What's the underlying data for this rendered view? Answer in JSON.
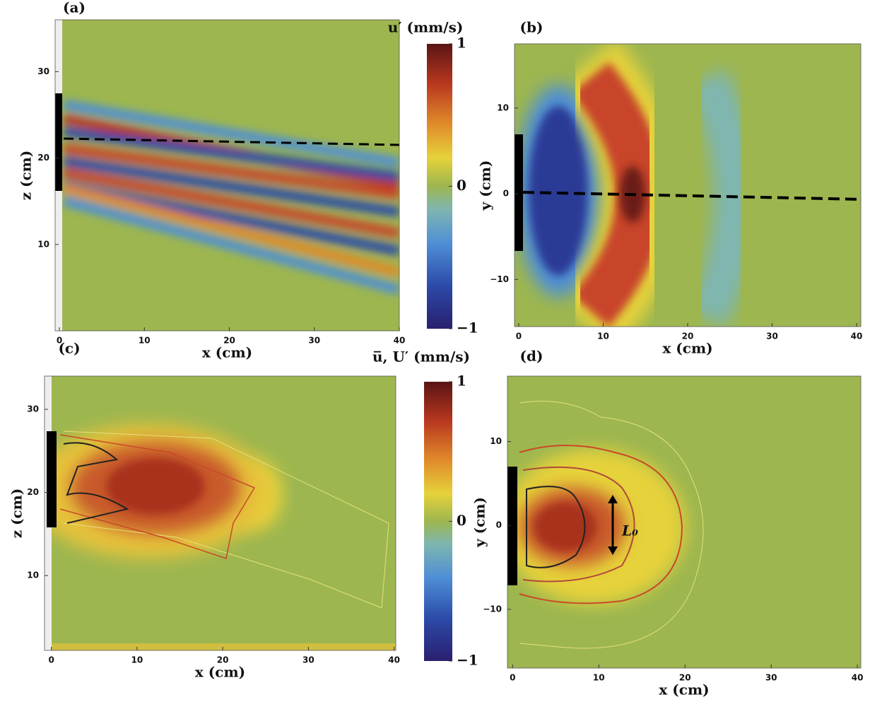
{
  "chart_data": [
    {
      "type": "heatmap",
      "panel_label": "(a)",
      "xlabel": "x (cm)",
      "ylabel": "z (cm)",
      "xlim": [
        -0.5,
        40
      ],
      "xticks": [
        0,
        10,
        20,
        30,
        40
      ],
      "ylim": [
        0,
        36
      ],
      "yticks": [
        10,
        20,
        30
      ]
    },
    {
      "type": "heatmap",
      "panel_label": "(b)",
      "xlabel": "x (cm)",
      "ylabel": "y (cm)",
      "xlim": [
        -0.5,
        40.5
      ],
      "xticks": [
        0,
        10,
        20,
        30,
        40
      ],
      "ylim": [
        -15.5,
        17.5
      ],
      "yticks": [
        {
          "value": -10,
          "label": "−10"
        },
        0,
        10
      ]
    },
    {
      "type": "heatmap",
      "panel_label": "(c)",
      "xlabel": "x (cm)",
      "ylabel": "z (cm)",
      "xlim": [
        -0.8,
        40.2
      ],
      "xticks": [
        0,
        10,
        20,
        30,
        40
      ],
      "ylim": [
        1,
        34
      ],
      "yticks": [
        10,
        20,
        30
      ]
    },
    {
      "type": "heatmap",
      "panel_label": "(d)",
      "xlabel": "x (cm)",
      "ylabel": "y (cm)",
      "xlim": [
        -0.6,
        40.4
      ],
      "xticks": [
        0,
        10,
        20,
        30,
        40
      ],
      "ylim": [
        -17,
        17.8
      ],
      "yticks": [
        {
          "value": -10,
          "label": "−10"
        },
        0,
        10
      ],
      "annotation": "L₀"
    },
    {
      "type": "colorbar",
      "label": "u′ (mm/s)",
      "lim": [
        -1,
        1
      ],
      "ticks": [
        {
          "value": -1,
          "label": "−1"
        },
        0,
        1
      ]
    },
    {
      "type": "colorbar",
      "label": "u̅, U′ (mm/s)",
      "lim": [
        -1,
        1
      ],
      "ticks": [
        {
          "value": -1,
          "label": "−1"
        },
        0,
        1
      ]
    }
  ]
}
